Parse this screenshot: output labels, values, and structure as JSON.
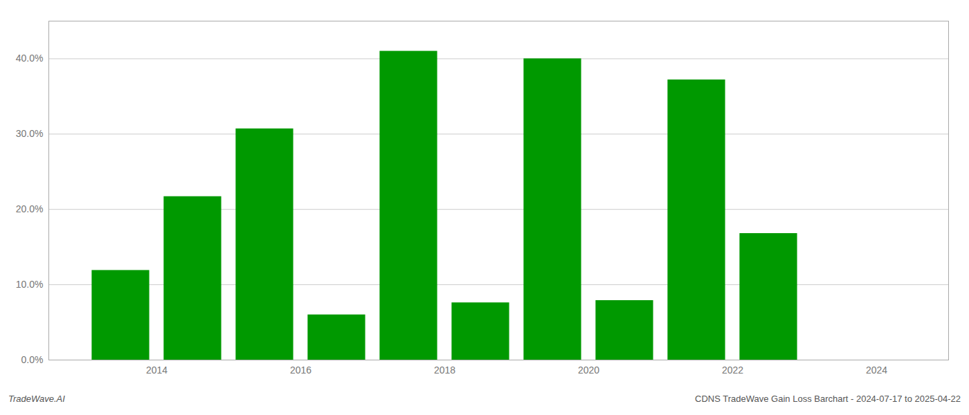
{
  "chart_data": {
    "type": "bar",
    "x": [
      2013.5,
      2014.5,
      2015.5,
      2016.5,
      2017.5,
      2018.5,
      2019.5,
      2020.5,
      2021.5,
      2022.5
    ],
    "values": [
      0.119,
      0.217,
      0.307,
      0.06,
      0.41,
      0.076,
      0.4,
      0.079,
      0.372,
      0.168
    ],
    "color": "#009900",
    "xlim": [
      2012.5,
      2025.0
    ],
    "xticks": [
      2014,
      2016,
      2018,
      2020,
      2022,
      2024
    ],
    "ylim": [
      0,
      0.45
    ],
    "yticks": [
      {
        "value": 0.0,
        "label": "0.0%"
      },
      {
        "value": 0.1,
        "label": "10.0%"
      },
      {
        "value": 0.2,
        "label": "20.0%"
      },
      {
        "value": 0.3,
        "label": "30.0%"
      },
      {
        "value": 0.4,
        "label": "40.0%"
      }
    ],
    "grid": true,
    "annotations": [
      "TradeWave.AI",
      "CDNS TradeWave Gain Loss Barchart - 2024-07-17 to 2025-04-22"
    ]
  }
}
